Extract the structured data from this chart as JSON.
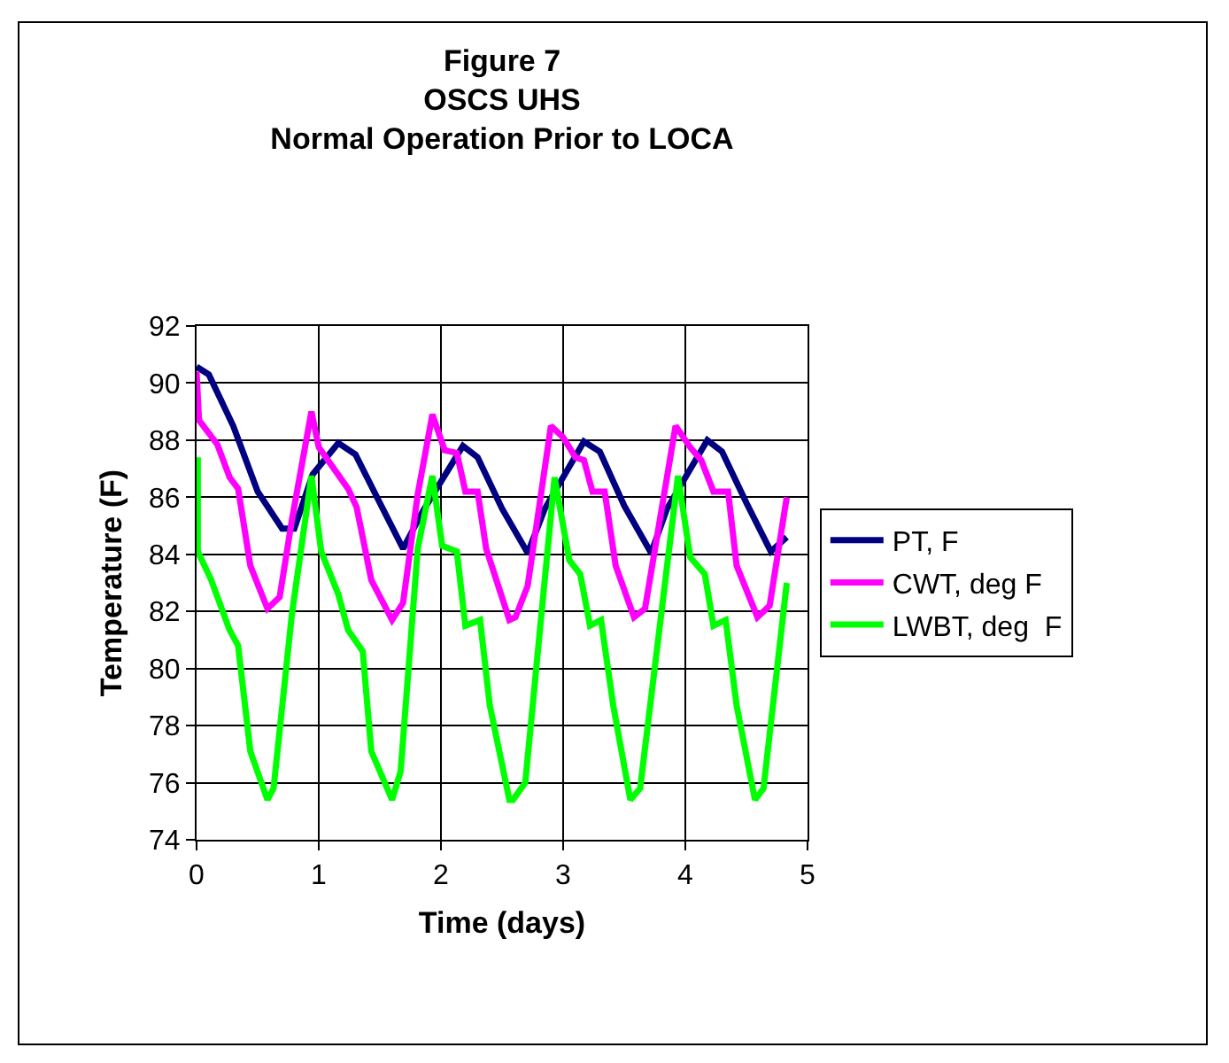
{
  "chart_data": {
    "type": "line",
    "title": "Figure 7\nOSCS UHS\nNormal Operation Prior to LOCA",
    "xlabel": "Time (days)",
    "ylabel": "Temperature (F)",
    "xlim": [
      0,
      5
    ],
    "xticks": [
      0,
      1,
      2,
      3,
      4,
      5
    ],
    "ylim": [
      74,
      92
    ],
    "yticks": [
      74,
      76,
      78,
      80,
      82,
      84,
      86,
      88,
      90,
      92
    ],
    "grid": true,
    "legend": "right",
    "marker": "none",
    "line_style": "solid",
    "series": [
      {
        "name": "PT, F",
        "color": "#000080",
        "x": [
          0,
          0.1,
          0.3,
          0.5,
          0.7,
          0.8,
          0.95,
          1.16,
          1.3,
          1.5,
          1.69,
          1.85,
          2.18,
          2.3,
          2.5,
          2.71,
          2.85,
          3.17,
          3.3,
          3.5,
          3.72,
          3.85,
          4.18,
          4.3,
          4.5,
          4.7,
          4.83
        ],
        "values": [
          90.57,
          90.3,
          88.5,
          86.2,
          84.9,
          84.9,
          86.8,
          87.9,
          87.5,
          85.8,
          84.2,
          85.5,
          87.8,
          87.4,
          85.6,
          84.05,
          85.6,
          87.95,
          87.6,
          85.7,
          84.05,
          85.6,
          88.0,
          87.6,
          85.8,
          84.1,
          84.6
        ]
      },
      {
        "name": "CWT, deg F",
        "color": "#ff00ff",
        "x": [
          0,
          0.02,
          0.17,
          0.27,
          0.34,
          0.44,
          0.58,
          0.68,
          0.78,
          0.94,
          1.0,
          1.24,
          1.31,
          1.43,
          1.6,
          1.69,
          1.81,
          1.93,
          2.03,
          2.13,
          2.2,
          2.3,
          2.37,
          2.56,
          2.61,
          2.71,
          2.9,
          3.0,
          3.1,
          3.17,
          3.24,
          3.34,
          3.43,
          3.58,
          3.67,
          3.92,
          4.04,
          4.13,
          4.23,
          4.35,
          4.42,
          4.59,
          4.69,
          4.83
        ],
        "values": [
          90.4,
          88.7,
          87.85,
          86.7,
          86.3,
          83.6,
          82.1,
          82.5,
          85.2,
          89.0,
          87.75,
          86.3,
          85.65,
          83.1,
          81.7,
          82.3,
          86.1,
          88.9,
          87.65,
          87.55,
          86.2,
          86.2,
          84.2,
          81.7,
          81.8,
          82.9,
          88.5,
          88.1,
          87.4,
          87.3,
          86.2,
          86.2,
          83.6,
          81.8,
          82.1,
          88.5,
          87.75,
          87.3,
          86.2,
          86.2,
          83.6,
          81.8,
          82.2,
          86.0
        ]
      },
      {
        "name": "LWBT, deg  F",
        "color": "#00ff00",
        "x": [
          0.01,
          0.01,
          0.12,
          0.27,
          0.34,
          0.44,
          0.58,
          0.63,
          0.78,
          0.94,
          1.02,
          1.16,
          1.24,
          1.36,
          1.43,
          1.6,
          1.67,
          1.81,
          1.93,
          2.01,
          2.13,
          2.2,
          2.32,
          2.4,
          2.56,
          2.59,
          2.69,
          2.93,
          3.05,
          3.14,
          3.22,
          3.31,
          3.41,
          3.55,
          3.63,
          3.94,
          4.04,
          4.16,
          4.23,
          4.33,
          4.42,
          4.57,
          4.64,
          4.83
        ],
        "values": [
          87.4,
          84.1,
          83.1,
          81.35,
          80.8,
          77.1,
          75.4,
          75.8,
          81.9,
          86.75,
          84.1,
          82.6,
          81.35,
          80.6,
          77.1,
          75.4,
          76.4,
          84.2,
          86.75,
          84.3,
          84.1,
          81.5,
          81.7,
          78.7,
          75.4,
          75.4,
          76.0,
          86.7,
          83.8,
          83.3,
          81.5,
          81.7,
          78.7,
          75.4,
          75.8,
          86.75,
          83.9,
          83.3,
          81.5,
          81.7,
          78.7,
          75.4,
          75.8,
          83.0
        ]
      }
    ]
  }
}
